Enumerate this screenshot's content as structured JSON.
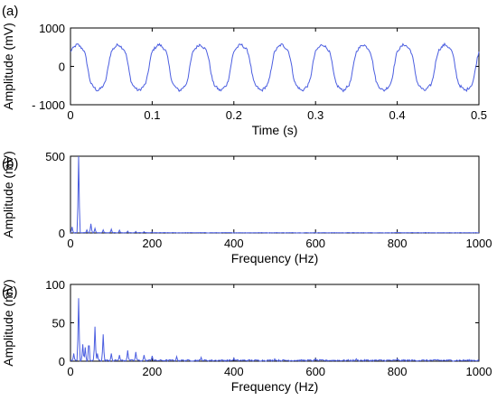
{
  "colors": {
    "series": "#4b5ee0",
    "axis": "#000000",
    "background": "#ffffff"
  },
  "chart_data": [
    {
      "panel_label": "(a)",
      "type": "line",
      "xlabel": "Time (s)",
      "ylabel": "Amplitude (mV)",
      "xlim": [
        0,
        0.5
      ],
      "ylim": [
        -1000,
        1000
      ],
      "xticks": [
        0,
        0.1,
        0.2,
        0.3,
        0.4,
        0.5
      ],
      "xtick_labels": [
        "0",
        "0.1",
        "0.2",
        "0.3",
        "0.4",
        "0.5"
      ],
      "yticks": [
        1000,
        0,
        -1000
      ],
      "ytick_labels": [
        "1000",
        "0",
        "- 1000"
      ],
      "grid": false,
      "series": [
        {
          "signal": "periodic",
          "frequency_hz": 20,
          "amplitude": 640,
          "offset": -30,
          "phase_cycles": 0.08,
          "harmonics": [
            [
              3,
              0.12
            ],
            [
              5,
              0.05
            ]
          ],
          "noise_mV": 35,
          "sample_step_s": 0.001
        }
      ]
    },
    {
      "panel_label": "(b)",
      "type": "line",
      "xlabel": "Frequency (Hz)",
      "ylabel": "Amplitude (mV)",
      "xlim": [
        0,
        1000
      ],
      "ylim": [
        0,
        500
      ],
      "xticks": [
        0,
        200,
        400,
        600,
        800,
        1000
      ],
      "xtick_labels": [
        "0",
        "200",
        "400",
        "600",
        "800",
        "1000"
      ],
      "yticks": [
        500,
        0
      ],
      "ytick_labels": [
        "500",
        "0"
      ],
      "grid": false,
      "series": [
        {
          "spectrum_step_hz": 2,
          "peaks": [
            [
              4,
              40
            ],
            [
              20,
              505
            ],
            [
              40,
              20
            ],
            [
              50,
              60
            ],
            [
              60,
              30
            ],
            [
              80,
              20
            ],
            [
              100,
              25
            ],
            [
              120,
              18
            ],
            [
              140,
              12
            ],
            [
              160,
              10
            ],
            [
              180,
              8
            ],
            [
              200,
              6
            ]
          ],
          "noise_floor": 3
        }
      ]
    },
    {
      "panel_label": "(c)",
      "type": "line",
      "xlabel": "Frequency (Hz)",
      "ylabel": "Amplitude (mV)",
      "xlim": [
        0,
        1000
      ],
      "ylim": [
        0,
        100
      ],
      "xticks": [
        0,
        200,
        400,
        600,
        800,
        1000
      ],
      "xtick_labels": [
        "0",
        "200",
        "400",
        "600",
        "800",
        "1000"
      ],
      "yticks": [
        100,
        50,
        0
      ],
      "ytick_labels": [
        "100",
        "50",
        "0"
      ],
      "grid": false,
      "series": [
        {
          "spectrum_step_hz": 2,
          "peaks": [
            [
              8,
              10
            ],
            [
              20,
              82
            ],
            [
              30,
              22
            ],
            [
              36,
              18
            ],
            [
              45,
              30
            ],
            [
              60,
              45
            ],
            [
              66,
              10
            ],
            [
              80,
              35
            ],
            [
              100,
              10
            ],
            [
              120,
              8
            ],
            [
              140,
              14
            ],
            [
              160,
              12
            ],
            [
              180,
              8
            ],
            [
              200,
              7
            ],
            [
              260,
              6
            ],
            [
              320,
              5
            ],
            [
              400,
              4
            ],
            [
              500,
              3
            ],
            [
              600,
              3
            ],
            [
              700,
              3
            ],
            [
              800,
              3
            ],
            [
              900,
              2
            ]
          ],
          "noise_floor": 2
        }
      ]
    }
  ]
}
